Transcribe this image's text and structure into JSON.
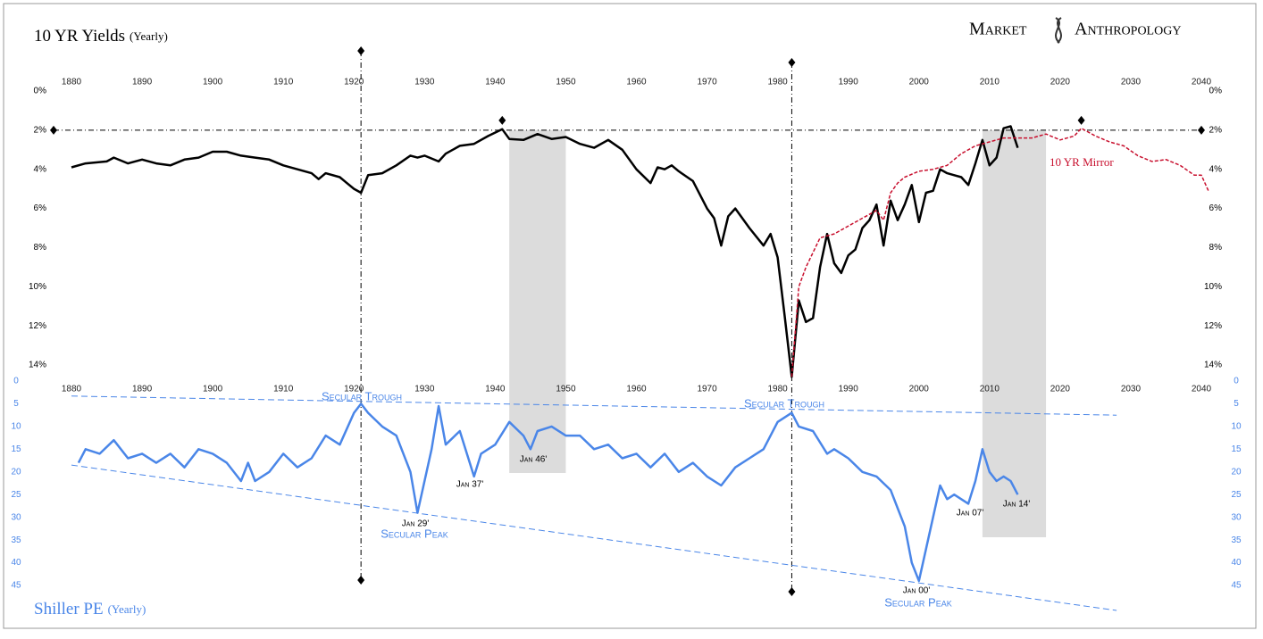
{
  "logo": {
    "left": "Market",
    "right": "Anthropology"
  },
  "chart_data": [
    {
      "type": "line",
      "title": "10 YR Yields",
      "subtitle": "(Yearly)",
      "xlim": [
        1880,
        2040
      ],
      "xticks": [
        1880,
        1890,
        1900,
        1910,
        1920,
        1930,
        1940,
        1950,
        1960,
        1970,
        1980,
        1990,
        2000,
        2010,
        2020,
        2030,
        2040
      ],
      "ylim": [
        0,
        14
      ],
      "y_inverted": true,
      "yticks": [
        {
          "value": 0,
          "label": "0%"
        },
        {
          "value": 2,
          "label": "2%"
        },
        {
          "value": 4,
          "label": "4%"
        },
        {
          "value": 6,
          "label": "6%"
        },
        {
          "value": 8,
          "label": "8%"
        },
        {
          "value": 10,
          "label": "10%"
        },
        {
          "value": 12,
          "label": "12%"
        },
        {
          "value": 14,
          "label": "14%"
        }
      ],
      "shaded_ranges": [
        [
          1942,
          1950
        ],
        [
          2009,
          2018
        ]
      ],
      "vlines": [
        1921,
        1982
      ],
      "hline": 2,
      "series": [
        {
          "color": "#000000",
          "style": "solid",
          "x": [
            1880,
            1882,
            1885,
            1886,
            1888,
            1890,
            1892,
            1894,
            1896,
            1898,
            1900,
            1902,
            1904,
            1906,
            1908,
            1910,
            1912,
            1914,
            1915,
            1916,
            1918,
            1919,
            1920,
            1921,
            1922,
            1924,
            1926,
            1928,
            1929,
            1930,
            1932,
            1933,
            1935,
            1937,
            1939,
            1941,
            1942,
            1944,
            1946,
            1948,
            1950,
            1952,
            1954,
            1956,
            1958,
            1960,
            1962,
            1963,
            1964,
            1965,
            1966,
            1968,
            1970,
            1971,
            1972,
            1973,
            1974,
            1976,
            1978,
            1979,
            1980,
            1981,
            1982,
            1983,
            1984,
            1985,
            1986,
            1987,
            1988,
            1989,
            1990,
            1991,
            1992,
            1993,
            1994,
            1995,
            1996,
            1997,
            1998,
            1999,
            2000,
            2001,
            2002,
            2003,
            2004,
            2005,
            2006,
            2007,
            2008,
            2009,
            2010,
            2011,
            2012,
            2013,
            2014
          ],
          "values": [
            3.9,
            3.7,
            3.6,
            3.4,
            3.7,
            3.5,
            3.7,
            3.8,
            3.5,
            3.4,
            3.1,
            3.1,
            3.3,
            3.4,
            3.5,
            3.8,
            4.0,
            4.2,
            4.5,
            4.2,
            4.4,
            4.7,
            5.0,
            5.2,
            4.3,
            4.2,
            3.8,
            3.3,
            3.4,
            3.3,
            3.6,
            3.2,
            2.8,
            2.7,
            2.3,
            1.95,
            2.45,
            2.5,
            2.2,
            2.45,
            2.35,
            2.7,
            2.9,
            2.5,
            3.0,
            4.0,
            4.7,
            3.9,
            4.0,
            3.8,
            4.1,
            4.6,
            6.0,
            6.5,
            7.9,
            6.4,
            6.0,
            7.0,
            7.9,
            7.3,
            8.5,
            11.5,
            14.6,
            10.7,
            11.8,
            11.6,
            9.0,
            7.3,
            8.8,
            9.3,
            8.4,
            8.1,
            7.0,
            6.6,
            5.8,
            7.9,
            5.6,
            6.6,
            5.8,
            4.8,
            6.7,
            5.2,
            5.1,
            4.0,
            4.2,
            4.3,
            4.4,
            4.8,
            3.7,
            2.5,
            3.8,
            3.4,
            1.9,
            1.8,
            2.9
          ]
        },
        {
          "name": "10 YR Mirror",
          "color": "#c8102e",
          "style": "dashed",
          "x": [
            1982,
            1983,
            1984,
            1986,
            1988,
            1990,
            1992,
            1994,
            1995,
            1996,
            1997,
            1998,
            2000,
            2002,
            2004,
            2006,
            2008,
            2010,
            2012,
            2014,
            2016,
            2018,
            2020,
            2022,
            2023,
            2025,
            2027,
            2029,
            2031,
            2033,
            2035,
            2037,
            2039,
            2040,
            2041
          ],
          "values": [
            14.6,
            10,
            9,
            7.5,
            7.3,
            6.9,
            6.5,
            6.1,
            6.6,
            5.2,
            4.7,
            4.4,
            4.1,
            4.0,
            3.8,
            3.2,
            2.8,
            2.6,
            2.4,
            2.4,
            2.4,
            2.2,
            2.5,
            2.3,
            1.9,
            2.3,
            2.6,
            2.8,
            3.3,
            3.6,
            3.5,
            3.8,
            4.3,
            4.3,
            5.1
          ]
        }
      ]
    },
    {
      "type": "line",
      "title": "Shiller PE",
      "subtitle": "(Yearly)",
      "xlim": [
        1880,
        2040
      ],
      "xticks": [
        1880,
        1890,
        1900,
        1910,
        1920,
        1930,
        1940,
        1950,
        1960,
        1970,
        1980,
        1990,
        2000,
        2010,
        2020,
        2030,
        2040
      ],
      "ylim": [
        0,
        45
      ],
      "y_inverted": true,
      "yticks": [
        0,
        5,
        10,
        15,
        20,
        25,
        30,
        35,
        40,
        45
      ],
      "series": [
        {
          "color": "#4a86e8",
          "style": "solid",
          "x": [
            1881,
            1882,
            1884,
            1886,
            1888,
            1890,
            1892,
            1894,
            1896,
            1898,
            1900,
            1902,
            1904,
            1905,
            1906,
            1908,
            1910,
            1912,
            1914,
            1916,
            1918,
            1920,
            1921,
            1922,
            1924,
            1926,
            1928,
            1929,
            1930,
            1931,
            1932,
            1933,
            1935,
            1937,
            1938,
            1940,
            1942,
            1944,
            1945,
            1946,
            1948,
            1950,
            1952,
            1954,
            1956,
            1958,
            1960,
            1962,
            1964,
            1966,
            1968,
            1970,
            1972,
            1974,
            1976,
            1978,
            1980,
            1982,
            1983,
            1985,
            1987,
            1988,
            1990,
            1992,
            1994,
            1996,
            1997,
            1998,
            1999,
            2000,
            2001,
            2002,
            2003,
            2004,
            2005,
            2006,
            2007,
            2008,
            2009,
            2010,
            2011,
            2012,
            2013,
            2014
          ],
          "values": [
            18,
            15,
            16,
            13,
            17,
            16,
            18,
            16,
            19,
            15,
            16,
            18,
            22,
            18,
            22,
            20,
            16,
            19,
            17,
            12,
            14,
            7,
            5,
            7,
            10,
            12,
            20,
            29,
            22,
            15,
            5.5,
            14,
            11,
            21,
            16,
            14,
            9,
            12,
            15,
            11,
            10,
            12,
            12,
            15,
            14,
            17,
            16,
            19,
            16,
            20,
            18,
            21,
            23,
            19,
            17,
            15,
            9,
            7,
            10,
            11,
            16,
            15,
            17,
            20,
            21,
            24,
            28,
            32,
            40,
            44,
            37,
            30,
            23,
            26,
            25,
            26,
            27,
            22,
            15,
            20,
            22,
            21,
            22,
            25
          ]
        },
        {
          "color": "#4a86e8",
          "style": "trend",
          "x": [
            1880,
            2028
          ],
          "values": [
            3.3,
            7.5
          ]
        },
        {
          "color": "#4a86e8",
          "style": "trend",
          "x": [
            1880,
            2028
          ],
          "values": [
            18.5,
            50.5
          ]
        }
      ],
      "annotations": [
        "Secular Trough",
        "Secular Trough",
        "Jan 29'",
        "Secular Peak",
        "Jan 37'",
        "Jan 46'",
        "Jan 00'",
        "Secular Peak",
        "Jan 07'",
        "Jan 14'"
      ]
    }
  ]
}
